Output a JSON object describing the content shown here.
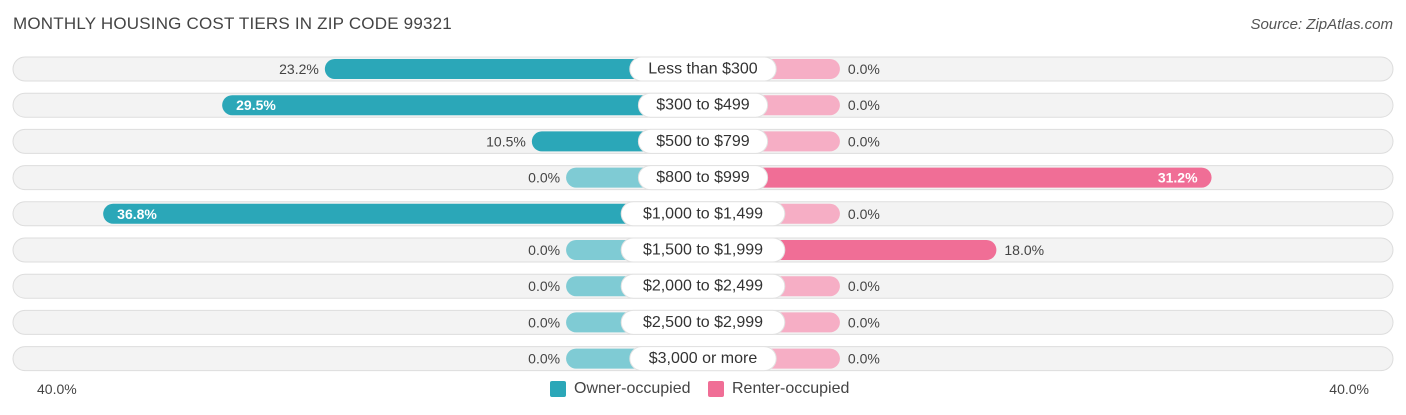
{
  "title": "MONTHLY HOUSING COST TIERS IN ZIP CODE 99321",
  "source": "Source: ZipAtlas.com",
  "colors": {
    "owner": "#2ba7b8",
    "owner_light": "#7fcbd4",
    "renter": "#f06e96",
    "renter_light": "#f6aec5",
    "track": "#eeeeee"
  },
  "legend": {
    "owner": "Owner-occupied",
    "renter": "Renter-occupied"
  },
  "axis": {
    "left_label": "40.0%",
    "right_label": "40.0%"
  },
  "chart_data": {
    "type": "bar",
    "orientation": "horizontal-diverging",
    "categories": [
      "Less than $300",
      "$300 to $499",
      "$500 to $799",
      "$800 to $999",
      "$1,000 to $1,499",
      "$1,500 to $1,999",
      "$2,000 to $2,499",
      "$2,500 to $2,999",
      "$3,000 or more"
    ],
    "series": [
      {
        "name": "Owner-occupied",
        "values": [
          23.2,
          29.5,
          10.5,
          0.0,
          36.8,
          0.0,
          0.0,
          0.0,
          0.0
        ],
        "labels": [
          "23.2%",
          "29.5%",
          "10.5%",
          "0.0%",
          "36.8%",
          "0.0%",
          "0.0%",
          "0.0%",
          "0.0%"
        ]
      },
      {
        "name": "Renter-occupied",
        "values": [
          0.0,
          0.0,
          0.0,
          31.2,
          0.0,
          18.0,
          0.0,
          0.0,
          0.0
        ],
        "labels": [
          "0.0%",
          "0.0%",
          "0.0%",
          "31.2%",
          "0.0%",
          "18.0%",
          "0.0%",
          "0.0%",
          "0.0%"
        ]
      }
    ],
    "xlim": [
      -40,
      40
    ],
    "legend_position": "bottom-center",
    "grid": false
  }
}
